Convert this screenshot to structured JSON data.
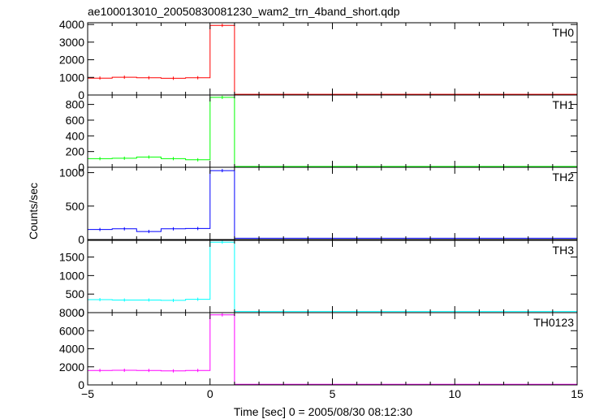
{
  "chart_data": {
    "type": "line",
    "title": "ae100013010_20050830081230_wam2_trn_4band_short.qdp",
    "xlabel": "Time [sec] 0 = 2005/08/30 08:12:30",
    "ylabel": "Counts/sec",
    "xlim": [
      -5,
      15
    ],
    "x_ticks": [
      -5,
      0,
      5,
      10,
      15
    ],
    "x_tick_labels": [
      "−5",
      "0",
      "5",
      "10",
      "15"
    ],
    "panels": [
      {
        "name": "TH0",
        "color": "#ff0000",
        "ylim": [
          0,
          4100
        ],
        "y_ticks": [
          0,
          1000,
          2000,
          3000,
          4000
        ],
        "steps": [
          {
            "x0": -5,
            "x1": -4,
            "y": 960
          },
          {
            "x0": -4,
            "x1": -3,
            "y": 1010
          },
          {
            "x0": -3,
            "x1": -2,
            "y": 980
          },
          {
            "x0": -2,
            "x1": -1,
            "y": 950
          },
          {
            "x0": -1,
            "x1": 0,
            "y": 980
          },
          {
            "x0": 0,
            "x1": 1,
            "y": 3950
          },
          {
            "x0": 1,
            "x1": 15,
            "y": 40
          }
        ]
      },
      {
        "name": "TH1",
        "color": "#00ff00",
        "ylim": [
          0,
          920
        ],
        "y_ticks": [
          0,
          200,
          400,
          600,
          800
        ],
        "steps": [
          {
            "x0": -5,
            "x1": -4,
            "y": 110
          },
          {
            "x0": -4,
            "x1": -3,
            "y": 115
          },
          {
            "x0": -3,
            "x1": -2,
            "y": 130
          },
          {
            "x0": -2,
            "x1": -1,
            "y": 110
          },
          {
            "x0": -1,
            "x1": 0,
            "y": 95
          },
          {
            "x0": 0,
            "x1": 1,
            "y": 890
          },
          {
            "x0": 1,
            "x1": 15,
            "y": 10
          }
        ]
      },
      {
        "name": "TH2",
        "color": "#0000ff",
        "ylim": [
          0,
          1080
        ],
        "y_ticks": [
          0,
          500,
          1000
        ],
        "steps": [
          {
            "x0": -5,
            "x1": -4,
            "y": 150
          },
          {
            "x0": -4,
            "x1": -3,
            "y": 160
          },
          {
            "x0": -3,
            "x1": -2,
            "y": 120
          },
          {
            "x0": -2,
            "x1": -1,
            "y": 160
          },
          {
            "x0": -1,
            "x1": 0,
            "y": 165
          },
          {
            "x0": 0,
            "x1": 1,
            "y": 1030
          },
          {
            "x0": 1,
            "x1": 15,
            "y": 20
          }
        ]
      },
      {
        "name": "TH3",
        "color": "#00ffff",
        "ylim": [
          0,
          1950
        ],
        "y_ticks": [
          0,
          500,
          1000,
          1500
        ],
        "steps": [
          {
            "x0": -5,
            "x1": -4,
            "y": 350
          },
          {
            "x0": -4,
            "x1": -3,
            "y": 340
          },
          {
            "x0": -3,
            "x1": -2,
            "y": 340
          },
          {
            "x0": -2,
            "x1": -1,
            "y": 330
          },
          {
            "x0": -1,
            "x1": 0,
            "y": 360
          },
          {
            "x0": 0,
            "x1": 1,
            "y": 1900
          },
          {
            "x0": 1,
            "x1": 15,
            "y": 30
          }
        ]
      },
      {
        "name": "TH0123",
        "color": "#ff00ff",
        "ylim": [
          0,
          8000
        ],
        "y_ticks": [
          0,
          2000,
          4000,
          6000,
          8000
        ],
        "steps": [
          {
            "x0": -5,
            "x1": -4,
            "y": 1600
          },
          {
            "x0": -4,
            "x1": -3,
            "y": 1620
          },
          {
            "x0": -3,
            "x1": -2,
            "y": 1600
          },
          {
            "x0": -2,
            "x1": -1,
            "y": 1550
          },
          {
            "x0": -1,
            "x1": 0,
            "y": 1600
          },
          {
            "x0": 0,
            "x1": 1,
            "y": 7750
          },
          {
            "x0": 1,
            "x1": 15,
            "y": 60
          }
        ]
      }
    ]
  }
}
